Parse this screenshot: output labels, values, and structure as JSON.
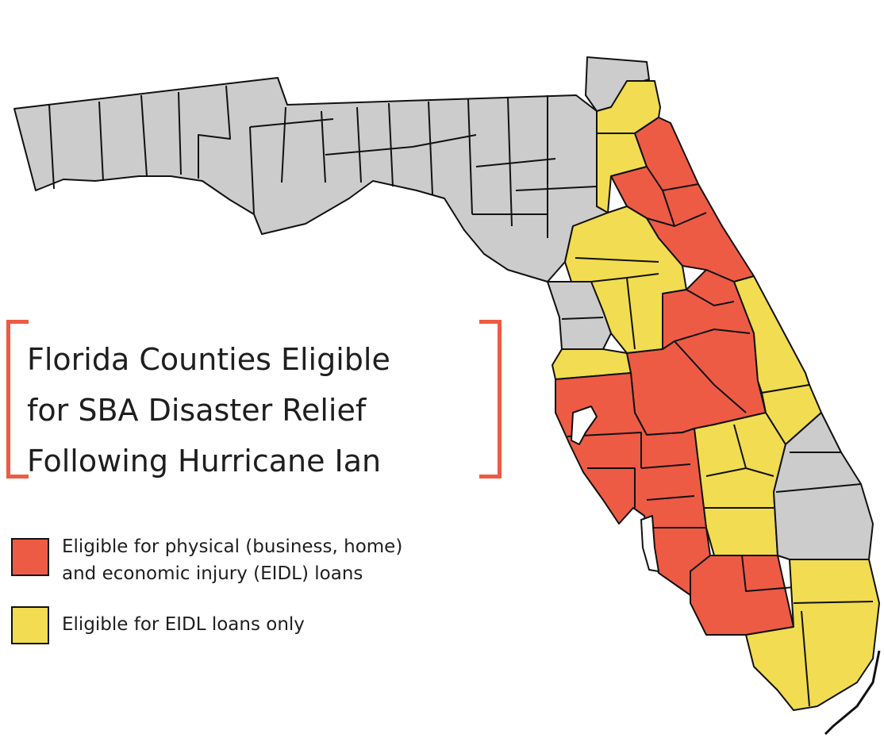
{
  "title": {
    "lines": [
      "Florida Counties Eligible",
      "for SBA Disaster Relief",
      "Following Hurricane Ian"
    ]
  },
  "legend": {
    "items": [
      {
        "label_lines": [
          "Eligible for physical (business, home)",
          "and economic injury (EIDL) loans"
        ],
        "color": "#ee5b44"
      },
      {
        "label_lines": [
          "Eligible for EIDL loans only"
        ],
        "color": "#f2dc51"
      }
    ]
  },
  "colors": {
    "physical_and_eidl": "#ee5b44",
    "eidl_only": "#f2dc51",
    "not_eligible": "#cccccc",
    "borders": "#111111"
  }
}
